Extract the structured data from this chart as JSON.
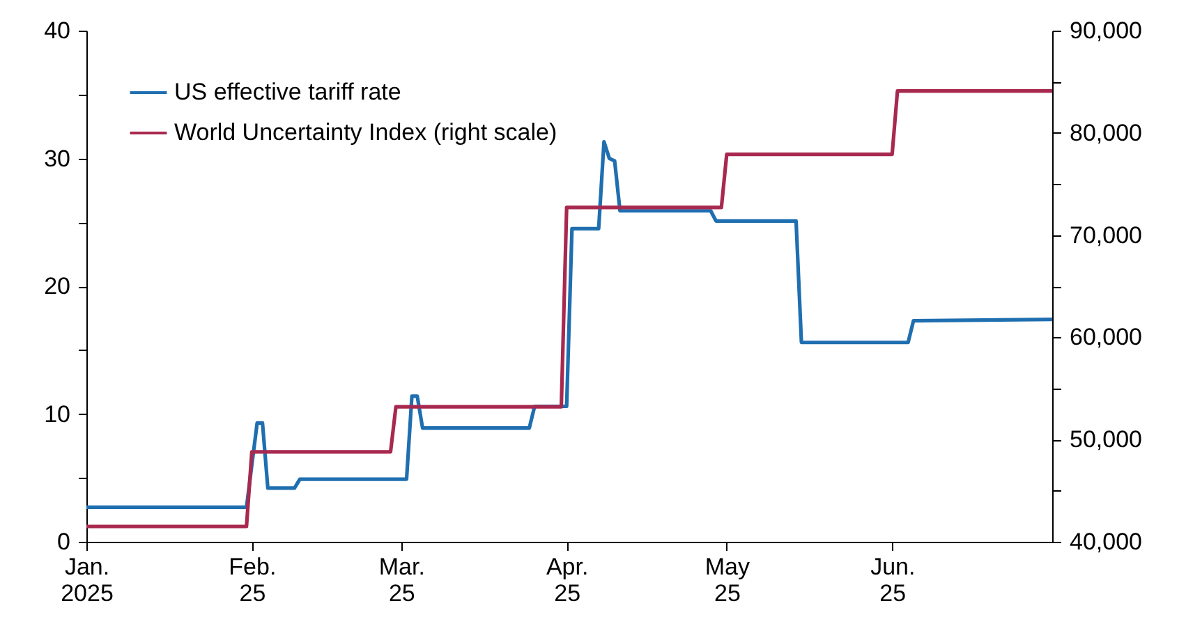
{
  "chart_data": {
    "type": "line",
    "xlim": [
      "2025-01-01",
      "2025-07-01"
    ],
    "xticks": [
      {
        "value": "2025-01-01",
        "label": "Jan. 2025"
      },
      {
        "value": "2025-02-01",
        "label": "Feb. 25"
      },
      {
        "value": "2025-03-01",
        "label": "Mar. 25"
      },
      {
        "value": "2025-04-01",
        "label": "Apr. 25"
      },
      {
        "value": "2025-05-01",
        "label": "May 25"
      },
      {
        "value": "2025-06-01",
        "label": "Jun. 25"
      }
    ],
    "ylim": [
      0,
      40
    ],
    "yticks": [
      {
        "value": 0,
        "label": "0"
      },
      {
        "value": 5,
        "label": null
      },
      {
        "value": 10,
        "label": "10"
      },
      {
        "value": 15,
        "label": null
      },
      {
        "value": 20,
        "label": "20"
      },
      {
        "value": 25,
        "label": null
      },
      {
        "value": 30,
        "label": "30"
      },
      {
        "value": 35,
        "label": null
      },
      {
        "value": 40,
        "label": "40"
      }
    ],
    "y2lim": [
      40000,
      90000
    ],
    "y2ticks": [
      {
        "value": 40000,
        "label": "40,000"
      },
      {
        "value": 45000,
        "label": null
      },
      {
        "value": 50000,
        "label": "50,000"
      },
      {
        "value": 55000,
        "label": null
      },
      {
        "value": 60000,
        "label": "60,000"
      },
      {
        "value": 65000,
        "label": null
      },
      {
        "value": 70000,
        "label": "70,000"
      },
      {
        "value": 75000,
        "label": null
      },
      {
        "value": 80000,
        "label": "80,000"
      },
      {
        "value": 85000,
        "label": null
      },
      {
        "value": 90000,
        "label": "90,000"
      }
    ],
    "grid": false,
    "legend": "top left",
    "series": [
      {
        "name": "US effective tariff rate",
        "color": "#1f6fb0",
        "x": [
          "2025-01-01",
          "2025-01-31",
          "2025-02-02",
          "2025-02-03",
          "2025-02-04",
          "2025-02-09",
          "2025-02-10",
          "2025-03-02",
          "2025-03-03",
          "2025-03-04",
          "2025-03-05",
          "2025-03-25",
          "2025-03-26",
          "2025-04-01",
          "2025-04-02",
          "2025-04-07",
          "2025-04-08",
          "2025-04-09",
          "2025-04-10",
          "2025-04-11",
          "2025-04-28",
          "2025-04-29",
          "2025-05-14",
          "2025-05-15",
          "2025-06-04",
          "2025-06-05",
          "2025-07-01"
        ],
        "values": [
          2.7,
          2.7,
          9.3,
          9.3,
          4.2,
          4.2,
          4.9,
          4.9,
          11.4,
          11.4,
          8.9,
          8.9,
          10.6,
          10.6,
          24.5,
          24.5,
          31.3,
          30.0,
          29.8,
          25.9,
          25.9,
          25.1,
          25.1,
          15.6,
          15.6,
          17.3,
          17.4
        ]
      },
      {
        "name": "World Uncertainty Index (right scale)",
        "color": "#a8294f",
        "axis": "y2",
        "x": [
          "2025-01-01",
          "2025-01-31",
          "2025-02-01",
          "2025-02-27",
          "2025-02-28",
          "2025-03-31",
          "2025-04-01",
          "2025-04-30",
          "2025-05-01",
          "2025-06-01",
          "2025-06-02",
          "2025-07-01"
        ],
        "values": [
          41500,
          41500,
          48800,
          48800,
          53200,
          53200,
          72700,
          72700,
          77900,
          77900,
          84100,
          84100
        ]
      }
    ]
  }
}
